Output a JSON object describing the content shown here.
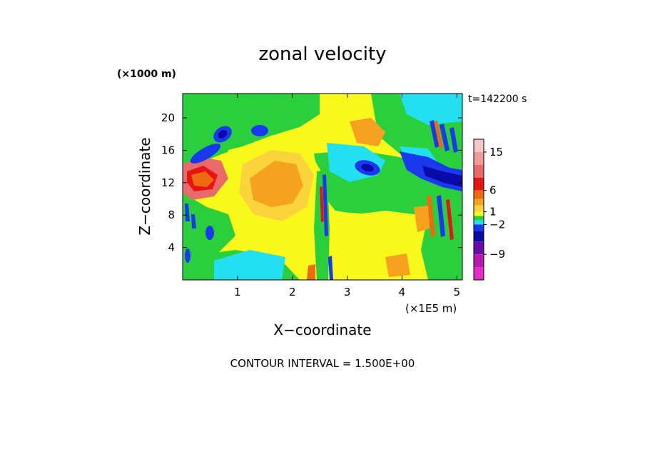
{
  "chart_data": {
    "type": "heatmap",
    "title": "zonal velocity",
    "xlabel": "X−coordinate",
    "ylabel": "Z−coordinate",
    "x_unit": "(×1E5 m)",
    "y_unit": "(×1000 m)",
    "time_label": "t=142200 s",
    "footer": "CONTOUR INTERVAL = 1.500E+00",
    "xlim": [
      0,
      5.1
    ],
    "ylim": [
      0,
      23
    ],
    "x_ticks": [
      1,
      2,
      3,
      4,
      5
    ],
    "y_ticks": [
      4,
      8,
      12,
      16,
      20
    ],
    "grid": false,
    "colorbar": {
      "tick_labels": [
        "15",
        "6",
        "1",
        "−2",
        "−9"
      ],
      "tick_values": [
        15,
        6,
        1,
        -2,
        -9
      ],
      "levels": [
        {
          "min": 15.0,
          "max": 18.0,
          "color": "#f7c6c6"
        },
        {
          "min": 12.0,
          "max": 15.0,
          "color": "#f09a9a"
        },
        {
          "min": 9.0,
          "max": 12.0,
          "color": "#e86a6a"
        },
        {
          "min": 6.0,
          "max": 9.0,
          "color": "#e81414"
        },
        {
          "min": 4.0,
          "max": 6.0,
          "color": "#ee6a10"
        },
        {
          "min": 2.5,
          "max": 4.0,
          "color": "#f6a21e"
        },
        {
          "min": 1.0,
          "max": 2.5,
          "color": "#fbd43c"
        },
        {
          "min": 0.0,
          "max": 1.0,
          "color": "#f8f81a"
        },
        {
          "min": -1.0,
          "max": 0.0,
          "color": "#2ad03c"
        },
        {
          "min": -2.0,
          "max": -1.0,
          "color": "#22e0f0"
        },
        {
          "min": -3.5,
          "max": -2.0,
          "color": "#1a38ee"
        },
        {
          "min": -6.0,
          "max": -3.5,
          "color": "#0a0aa8"
        },
        {
          "min": -9.0,
          "max": -6.0,
          "color": "#6a0aa8"
        },
        {
          "min": -12.0,
          "max": -9.0,
          "color": "#b818b0"
        },
        {
          "min": -15.0,
          "max": -12.0,
          "color": "#e82ac8"
        }
      ]
    }
  }
}
